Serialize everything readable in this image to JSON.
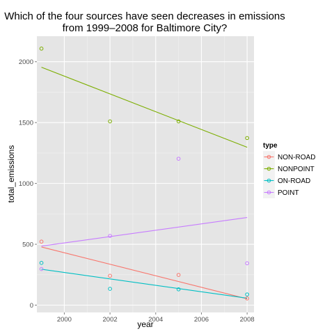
{
  "chart_data": {
    "type": "scatter",
    "title_lines": [
      "Which of the four sources have seen decreases in emissions",
      "from 1999–2008 for Baltimore City?"
    ],
    "xlabel": "year",
    "ylabel": "total_emissions",
    "xlim": [
      1998.8,
      2008.3
    ],
    "ylim": [
      -60,
      2210
    ],
    "x_ticks": [
      2000,
      2002,
      2004,
      2006,
      2008
    ],
    "x_tick_labels": [
      "2000",
      "2002",
      "2004",
      "2006",
      "2008"
    ],
    "y_ticks": [
      0,
      500,
      1000,
      1500,
      2000
    ],
    "y_tick_labels": [
      "0",
      "500",
      "1000",
      "1500",
      "2000"
    ],
    "grid": true,
    "legend_title": "type",
    "legend_position": "right",
    "series": [
      {
        "name": "NON-ROAD",
        "color": "#F8766D",
        "x": [
          1999,
          2002,
          2005,
          2008
        ],
        "y": [
          522,
          241,
          248,
          55
        ],
        "fit": [
          [
            1999,
            478
          ],
          [
            2008,
            52
          ]
        ]
      },
      {
        "name": "NONPOINT",
        "color": "#7CAE00",
        "x": [
          1999,
          2002,
          2005,
          2008
        ],
        "y": [
          2108,
          1510,
          1510,
          1373
        ],
        "fit": [
          [
            1999,
            1955
          ],
          [
            2008,
            1297
          ]
        ]
      },
      {
        "name": "ON-ROAD",
        "color": "#00BFC4",
        "x": [
          1999,
          2002,
          2005,
          2008
        ],
        "y": [
          347,
          134,
          130,
          88
        ],
        "fit": [
          [
            1999,
            295
          ],
          [
            2008,
            57
          ]
        ]
      },
      {
        "name": "POINT",
        "color": "#C77CFF",
        "x": [
          1999,
          2002,
          2005,
          2008
        ],
        "y": [
          297,
          569,
          1203,
          344
        ],
        "fit": [
          [
            1999,
            485
          ],
          [
            2008,
            720
          ]
        ]
      }
    ]
  }
}
